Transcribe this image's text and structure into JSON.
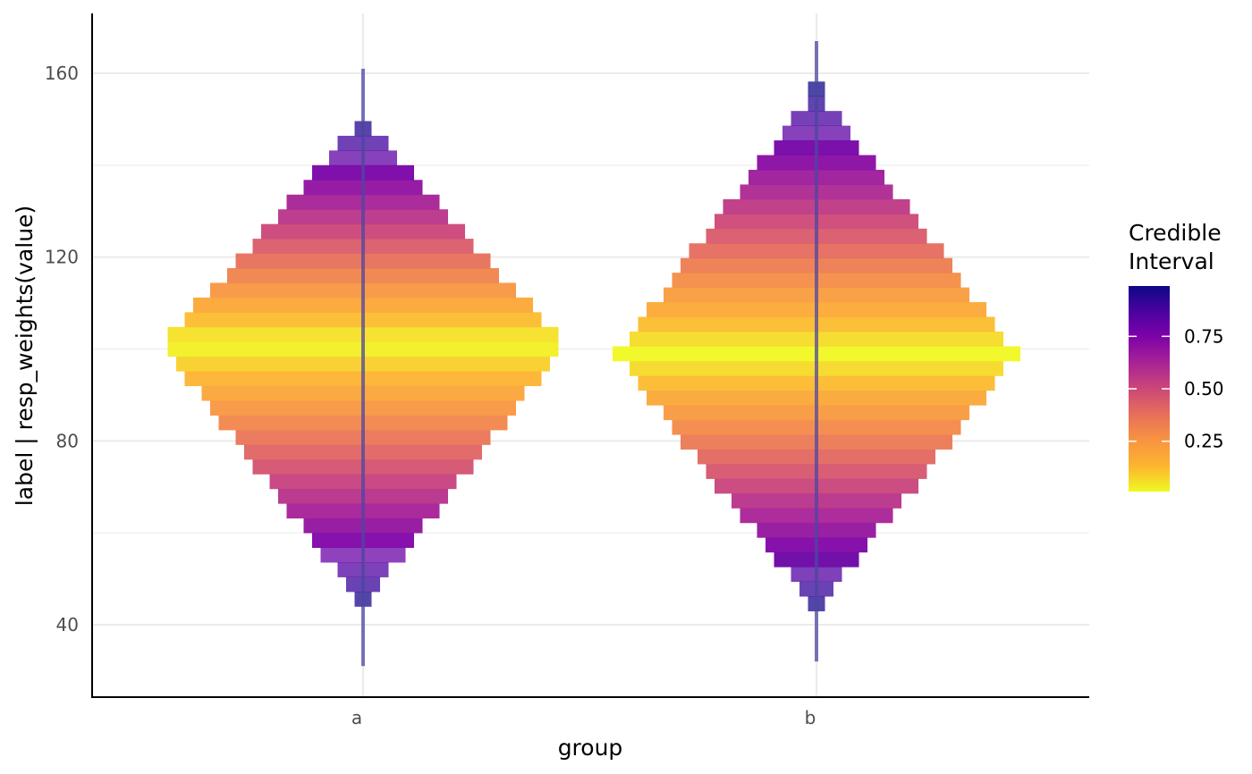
{
  "chart_data": {
    "type": "heatmap",
    "subtype": "gradient-interval (eye) plot",
    "xlabel": "group",
    "ylabel": "label | resp_weights(value)",
    "categories": [
      "a",
      "b"
    ],
    "y_ticks": [
      "40",
      "80",
      "120",
      "160"
    ],
    "y_tick_values": [
      40,
      80,
      120,
      160
    ],
    "ylim": [
      24.5,
      173
    ],
    "grid": true,
    "legend": {
      "title_line1": "Credible",
      "title_line2": "Interval",
      "position": "right",
      "ticks": [
        "0.25",
        "0.50",
        "0.75"
      ],
      "tick_values": [
        0.25,
        0.5,
        0.75
      ],
      "range": [
        0.01,
        0.99
      ],
      "colors": [
        "#F0F921",
        "#FDB42F",
        "#F89441",
        "#E76F5A",
        "#CC4778",
        "#A92395",
        "#7E03A8",
        "#4C02A1",
        "#0D0887"
      ]
    },
    "series": [
      {
        "group": "a",
        "center": 101,
        "max_width": 0.89,
        "min": 31,
        "max": 161,
        "body_min": 44,
        "body_max": 150
      },
      {
        "group": "b",
        "center": 99,
        "max_width": 0.89,
        "min": 32,
        "max": 167,
        "body_min": 43,
        "body_max": 157
      }
    ],
    "interval_line_color": "#4C47A0"
  }
}
